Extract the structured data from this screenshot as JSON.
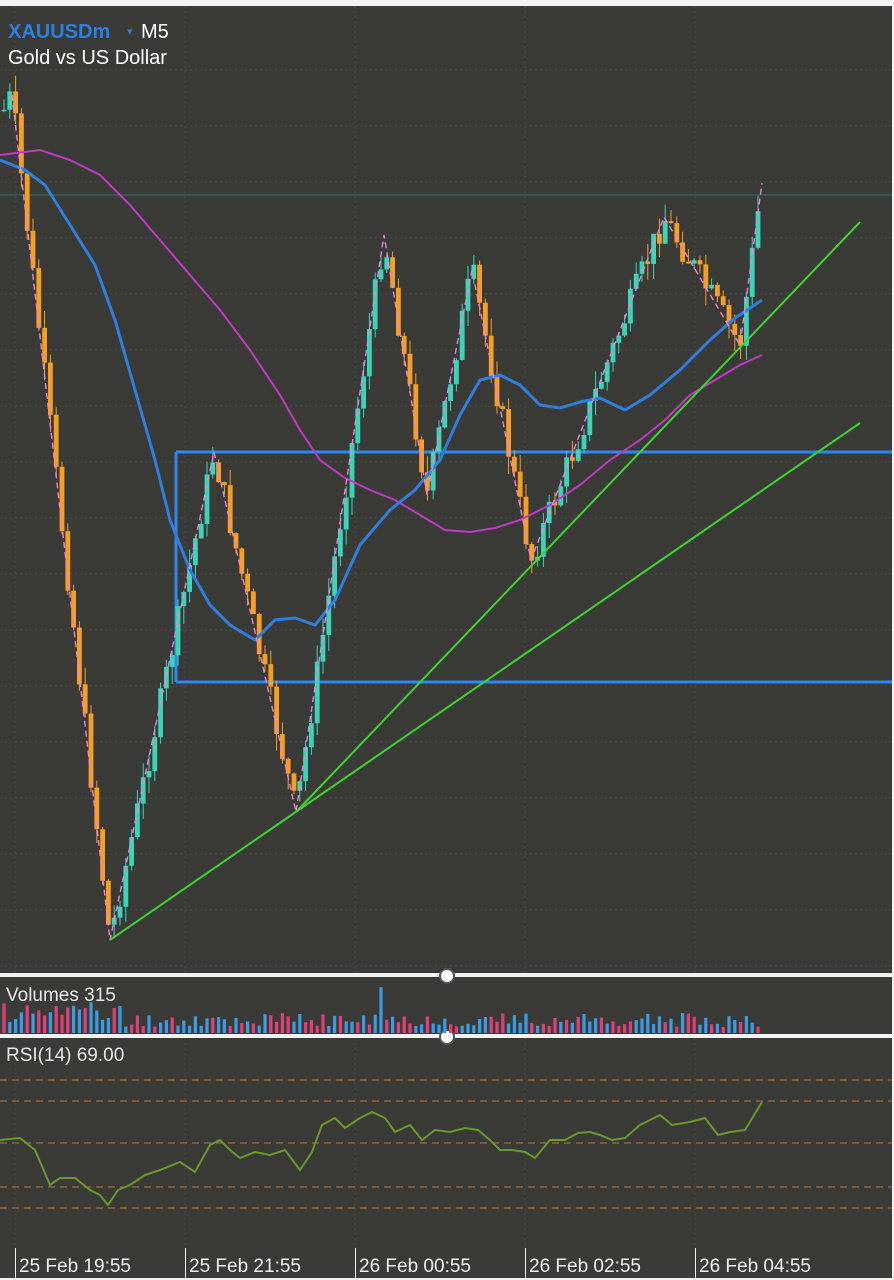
{
  "header": {
    "symbol": "XAUUSDm",
    "symbol_dropdown_icon": "triangle-down-icon",
    "timeframe": "M5",
    "description": "Gold vs US Dollar"
  },
  "indicators": {
    "volumes_label": "Volumes 315",
    "rsi_label": "RSI(14) 69.00"
  },
  "time_axis": {
    "labels": [
      "25 Feb 19:55",
      "25 Feb 21:55",
      "26 Feb 00:55",
      "26 Feb 02:55",
      "26 Feb 04:55"
    ]
  },
  "colors": {
    "background": "#3a3a36",
    "bull_candle": "#3ad6b8",
    "bear_candle": "#f5a023",
    "ma_fast": "#2f7fe0",
    "ma_slow": "#c03ac6",
    "zigzag": "#f07ee0",
    "trendline": "#3cd62e",
    "zone_rectangle": "#2f88f0",
    "rsi_line": "#6a9a2a",
    "rsi_levels": "#c8752e",
    "volume_up": "#3a9be6",
    "volume_down": "#e0407a"
  }
}
